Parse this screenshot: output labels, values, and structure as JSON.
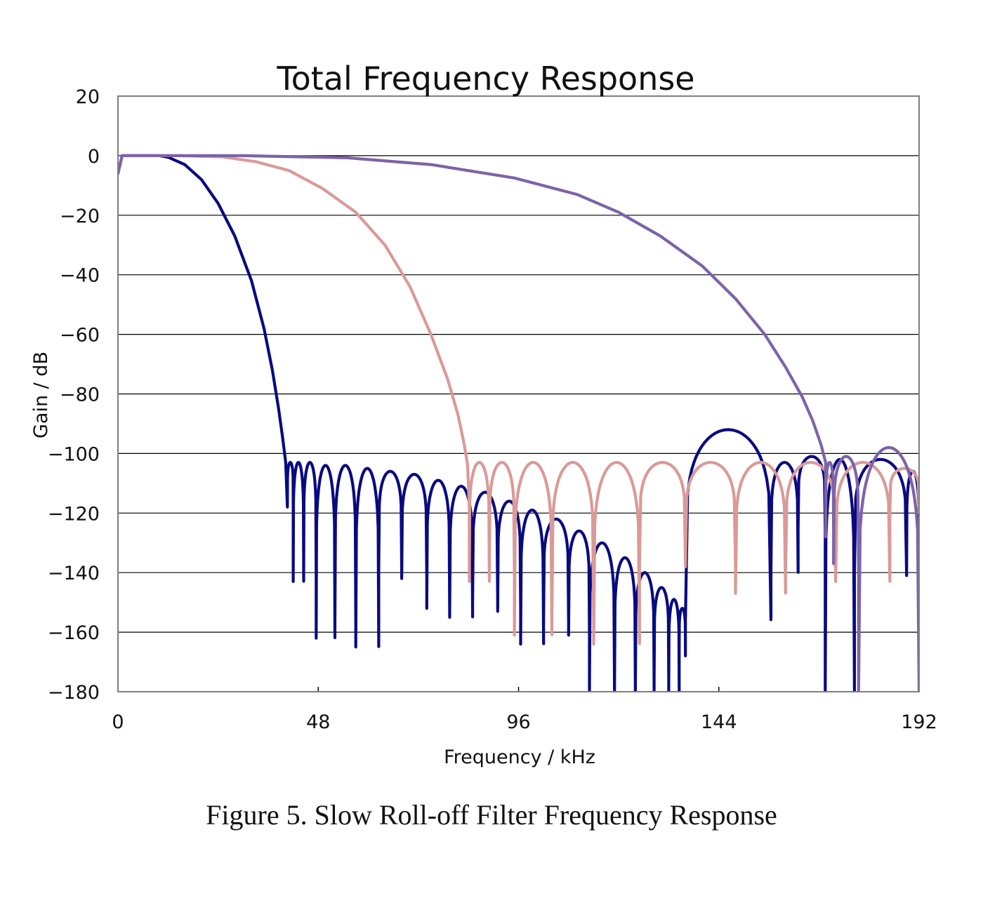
{
  "caption": "Figure 5. Slow Roll-off Filter Frequency Response",
  "chart_data": {
    "type": "line",
    "title": "Total Frequency Response",
    "xlabel": "Frequency / kHz",
    "ylabel": "Gain / dB",
    "xlim": [
      0,
      192
    ],
    "ylim": [
      -180,
      20
    ],
    "xticks": [
      0,
      48,
      96,
      144,
      192
    ],
    "yticks": [
      20,
      0,
      -20,
      -40,
      -60,
      -80,
      -100,
      -120,
      -140,
      -160,
      -180
    ],
    "grid": "horizontal",
    "legend": "none",
    "series": [
      {
        "color": "#0a0a80",
        "passband": [
          [
            0,
            -6
          ],
          [
            1,
            0
          ],
          [
            10,
            0
          ],
          [
            12,
            -0.5
          ],
          [
            16,
            -3
          ],
          [
            20,
            -8
          ],
          [
            24,
            -16
          ],
          [
            28,
            -27
          ],
          [
            32,
            -42
          ],
          [
            35,
            -58
          ],
          [
            37,
            -72
          ],
          [
            38.5,
            -85
          ],
          [
            39.5,
            -95
          ],
          [
            40.2,
            -103
          ],
          [
            40.6,
            -118
          ]
        ],
        "stopband": {
          "lobes": [
            [
              40.6,
              42.0,
              -103,
              -118
            ],
            [
              42.0,
              44.5,
              -103,
              -143
            ],
            [
              44.5,
              47.5,
              -103,
              -141
            ],
            [
              47.5,
              52.0,
              -104,
              -162
            ],
            [
              52.0,
              57.0,
              -104,
              -157
            ],
            [
              57.0,
              62.5,
              -105,
              -165
            ],
            [
              62.5,
              68.0,
              -106,
              -139
            ],
            [
              68.0,
              74.0,
              -107,
              -142
            ],
            [
              74.0,
              79.5,
              -109,
              -152
            ],
            [
              79.5,
              85.0,
              -111,
              -155
            ],
            [
              85.0,
              91.0,
              -113,
              -150
            ],
            [
              91.0,
              96.5,
              -116,
              -153
            ],
            [
              96.5,
              102.0,
              -119,
              -164
            ],
            [
              102.0,
              108.0,
              -122,
              -157
            ],
            [
              108.0,
              113.0,
              -126,
              -161
            ],
            [
              113.0,
              119.0,
              -130,
              -180
            ],
            [
              119.0,
              124.0,
              -135,
              -180
            ],
            [
              124.0,
              128.5,
              -140,
              -180
            ],
            [
              128.5,
              132.0,
              -145,
              -176
            ],
            [
              132.0,
              134.5,
              -149,
              -180
            ],
            [
              134.5,
              136.0,
              -152,
              -168
            ],
            [
              136.0,
              156.5,
              -92,
              -156
            ],
            [
              156.5,
              163.0,
              -103,
              -140
            ],
            [
              163.0,
              169.5,
              -101,
              -125
            ],
            [
              169.5,
              176.5,
              -102,
              -180
            ],
            [
              176.5,
              189.0,
              -102,
              -141
            ],
            [
              189.0,
              192.0,
              -106,
              -141
            ]
          ]
        }
      },
      {
        "color": "#d99a98",
        "passband": [
          [
            0,
            -6
          ],
          [
            1,
            0
          ],
          [
            15,
            0
          ],
          [
            25,
            -0.4
          ],
          [
            33,
            -2
          ],
          [
            41,
            -5
          ],
          [
            49,
            -11
          ],
          [
            57,
            -19
          ],
          [
            64,
            -30
          ],
          [
            70,
            -44
          ],
          [
            75,
            -60
          ],
          [
            79,
            -75
          ],
          [
            81.5,
            -87
          ],
          [
            83,
            -97
          ],
          [
            83.8,
            -104
          ],
          [
            84.2,
            -118
          ]
        ],
        "stopband": {
          "lobes": [
            [
              84.2,
              89.0,
              -103,
              -143
            ],
            [
              89.0,
              95.0,
              -103,
              -141
            ],
            [
              95.0,
              104.0,
              -103,
              -161
            ],
            [
              104.0,
              114.0,
              -103,
              -156
            ],
            [
              114.0,
              125.0,
              -103,
              -164
            ],
            [
              125.0,
              136.0,
              -103,
              -137
            ],
            [
              136.0,
              148.0,
              -103,
              -138
            ],
            [
              148.0,
              160.0,
              -103,
              -147
            ],
            [
              160.0,
              172.0,
              -103,
              -140
            ],
            [
              172.0,
              185.0,
              -103,
              -143
            ],
            [
              185.0,
              192.0,
              -105,
              -120
            ]
          ]
        }
      },
      {
        "color": "#7d63a8",
        "passband": [
          [
            0,
            -6
          ],
          [
            1,
            0
          ],
          [
            30,
            0
          ],
          [
            55,
            -0.7
          ],
          [
            75,
            -3
          ],
          [
            95,
            -7.5
          ],
          [
            110,
            -13
          ],
          [
            120,
            -19
          ],
          [
            130,
            -27
          ],
          [
            140,
            -37
          ],
          [
            148,
            -48
          ],
          [
            155,
            -60
          ],
          [
            160,
            -71
          ],
          [
            164,
            -81
          ],
          [
            166.5,
            -89
          ],
          [
            168.5,
            -97
          ],
          [
            169.6,
            -103
          ]
        ],
        "stopband": {
          "lobes": [
            [
              169.6,
              171.5,
              -103,
              -128
            ],
            [
              171.5,
              177.5,
              -101,
              -137
            ],
            [
              177.5,
              192.0,
              -98,
              -180
            ]
          ]
        }
      }
    ]
  }
}
